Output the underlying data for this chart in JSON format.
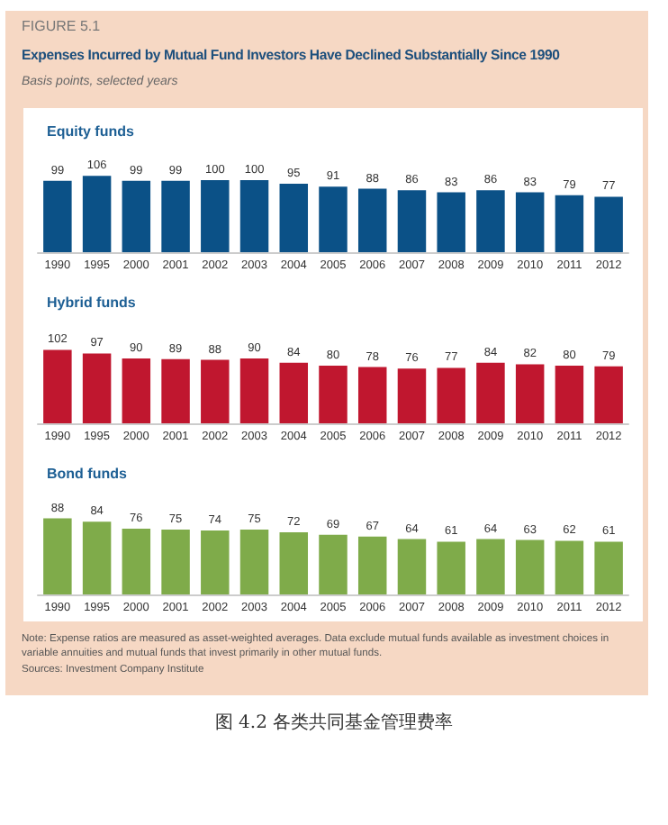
{
  "chart_data": [
    {
      "type": "bar",
      "title": "Equity funds",
      "annotations": [
        "FIGURE 5.1",
        "Expenses Incurred by Mutual Fund Investors Have Declined Substantially Since 1990",
        "Basis points, selected years"
      ],
      "categories": [
        "1990",
        "1995",
        "2000",
        "2001",
        "2002",
        "2003",
        "2004",
        "2005",
        "2006",
        "2007",
        "2008",
        "2009",
        "2010",
        "2011",
        "2012"
      ],
      "values": [
        99,
        106,
        99,
        99,
        100,
        100,
        95,
        91,
        88,
        86,
        83,
        86,
        83,
        79,
        77
      ],
      "color": "#0b5187",
      "data_labels": true
    },
    {
      "type": "bar",
      "title": "Hybrid funds",
      "categories": [
        "1990",
        "1995",
        "2000",
        "2001",
        "2002",
        "2003",
        "2004",
        "2005",
        "2006",
        "2007",
        "2008",
        "2009",
        "2010",
        "2011",
        "2012"
      ],
      "values": [
        102,
        97,
        90,
        89,
        88,
        90,
        84,
        80,
        78,
        76,
        77,
        84,
        82,
        80,
        79
      ],
      "color": "#c0172f",
      "data_labels": true
    },
    {
      "type": "bar",
      "title": "Bond funds",
      "annotations": [
        "Note: Expense ratios are measured as asset-weighted averages. Data exclude mutual funds available as investment choices in variable annuities and mutual funds that invest primarily in other mutual funds.",
        "Sources: Investment Company Institute",
        "图 4.2  各类共同基金管理费率"
      ],
      "categories": [
        "1990",
        "1995",
        "2000",
        "2001",
        "2002",
        "2003",
        "2004",
        "2005",
        "2006",
        "2007",
        "2008",
        "2009",
        "2010",
        "2011",
        "2012"
      ],
      "values": [
        88,
        84,
        76,
        75,
        74,
        75,
        72,
        69,
        67,
        64,
        61,
        64,
        63,
        62,
        61
      ],
      "color": "#7fab4a",
      "data_labels": true
    }
  ]
}
